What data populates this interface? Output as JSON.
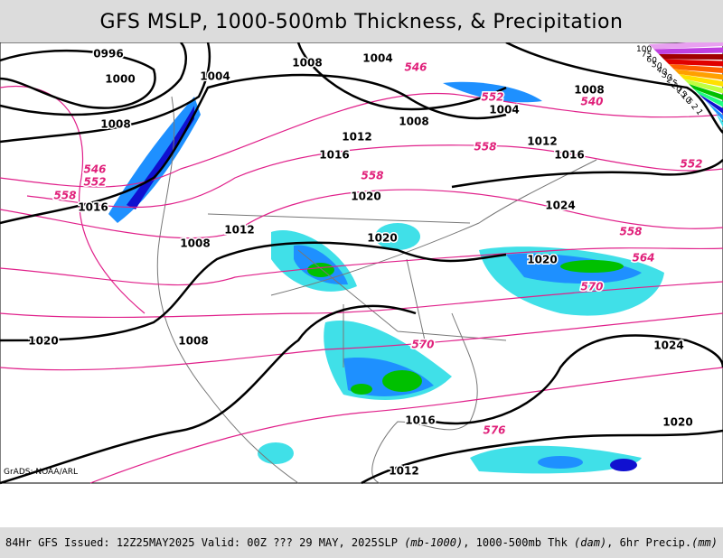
{
  "title": "GFS MSLP, 1000-500mb Thickness, & Precipitation",
  "credit": "GrADS: NOAA/ARL",
  "footer": {
    "run": "84Hr GFS Issued: 12Z25MAY2025 Valid: 00Z ??? 29 MAY, 2025",
    "legend_parts": [
      {
        "text": "SLP ",
        "italic": false
      },
      {
        "text": "(mb-1000)",
        "italic": true
      },
      {
        "text": ", 1000-500mb Thk ",
        "italic": false
      },
      {
        "text": "(dam)",
        "italic": true
      },
      {
        "text": ", 6hr Precip.",
        "italic": false
      },
      {
        "text": "(mm)",
        "italic": true
      }
    ]
  },
  "precip_scale": [
    {
      "level": 100,
      "color": "#e8a0f0"
    },
    {
      "level": 75,
      "color": "#c040e0"
    },
    {
      "level": 60,
      "color": "#a00000"
    },
    {
      "level": 50,
      "color": "#e00000"
    },
    {
      "level": 40,
      "color": "#ff6000"
    },
    {
      "level": 30,
      "color": "#ffa000"
    },
    {
      "level": 25,
      "color": "#ffe000"
    },
    {
      "level": 20,
      "color": "#c0ff40"
    },
    {
      "level": 15,
      "color": "#00c000"
    },
    {
      "level": 10,
      "color": "#20ff80"
    },
    {
      "level": 5,
      "color": "#1010d0"
    },
    {
      "level": 2,
      "color": "#1e90ff"
    },
    {
      "level": 1,
      "color": "#40e0e8"
    }
  ],
  "isobar_labels": [
    "0996",
    "1000",
    "1004",
    "1008",
    "1004",
    "1008",
    "1008",
    "1012",
    "1016",
    "1012",
    "1016",
    "1008",
    "1004",
    "1020",
    "1024",
    "1016",
    "1012",
    "1008",
    "1020",
    "1020",
    "1008",
    "1020",
    "1024",
    "1016",
    "1020",
    "1012"
  ],
  "thickness_labels": [
    "546",
    "552",
    "540",
    "558",
    "552",
    "546",
    "552",
    "558",
    "558",
    "558",
    "564",
    "570",
    "570",
    "576"
  ]
}
